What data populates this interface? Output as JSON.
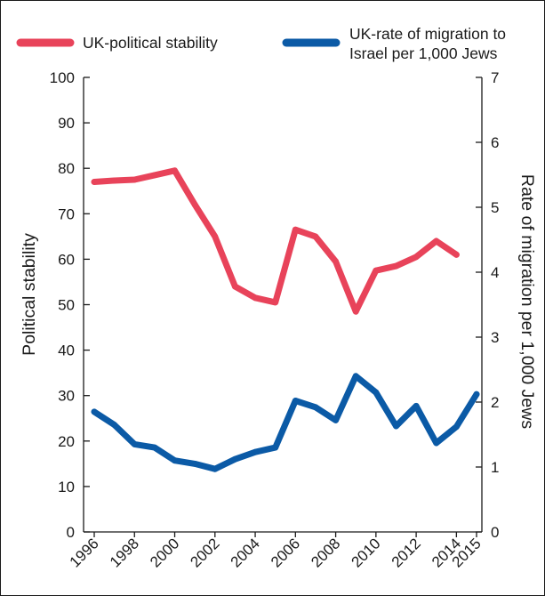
{
  "chart_data": {
    "type": "line",
    "x": [
      1996,
      1997,
      1998,
      1999,
      2000,
      2001,
      2002,
      2003,
      2004,
      2005,
      2006,
      2007,
      2008,
      2009,
      2010,
      2011,
      2012,
      2013,
      2014,
      2015
    ],
    "x_tick_labels": [
      "1996",
      "1998",
      "2000",
      "2002",
      "2004",
      "2006",
      "2008",
      "2010",
      "2012",
      "2014",
      "2015"
    ],
    "ylabel_left": "Political stability",
    "ylabel_right": "Rate of migration per 1,000 Jews",
    "ylim_left": [
      0,
      100
    ],
    "ylim_right": [
      0,
      7
    ],
    "yticks_left": [
      "0",
      "10",
      "20",
      "30",
      "40",
      "50",
      "60",
      "70",
      "80",
      "90",
      "100"
    ],
    "yticks_right": [
      "0",
      "1",
      "2",
      "3",
      "4",
      "5",
      "6",
      "7"
    ],
    "grid": false,
    "legend_position": "top",
    "series": [
      {
        "name": "UK-political stability",
        "axis": "left",
        "color": "#e8435a",
        "values": [
          77,
          77.3,
          77.5,
          78.5,
          79.5,
          72,
          65,
          54,
          51.5,
          50.5,
          66.5,
          65,
          59.5,
          48.5,
          57.5,
          58.5,
          60.5,
          64,
          61,
          null
        ]
      },
      {
        "name": "UK-rate of migration to Israel per 1,000 Jews",
        "name_lines": [
          "UK-rate of migration to",
          "Israel per 1,000 Jews"
        ],
        "axis": "right",
        "color": "#0b5aa6",
        "values": [
          1.85,
          1.65,
          1.35,
          1.3,
          1.1,
          1.05,
          0.97,
          1.12,
          1.23,
          1.3,
          2.02,
          1.92,
          1.72,
          2.4,
          2.15,
          1.63,
          1.94,
          1.37,
          1.62,
          2.12
        ]
      }
    ]
  }
}
